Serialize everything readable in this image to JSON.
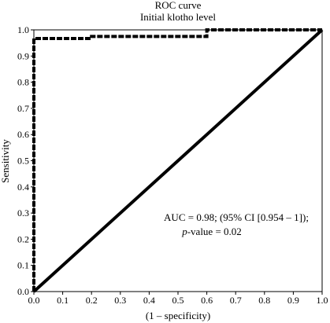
{
  "chart_data": {
    "type": "line",
    "title": "ROC curve",
    "subtitle": "Initial klotho level",
    "xlabel": "(1 – specificity)",
    "ylabel": "Sensitivity",
    "xlim": [
      0,
      1
    ],
    "ylim": [
      0,
      1
    ],
    "xticks": [
      "0.0",
      "0.1",
      "0.2",
      "0.3",
      "0.4",
      "0.5",
      "0.6",
      "0.7",
      "0.8",
      "0.9",
      "1.0"
    ],
    "yticks": [
      "0.0",
      "0.1",
      "0.2",
      "0.3",
      "0.4",
      "0.5",
      "0.6",
      "0.7",
      "0.8",
      "0.9",
      "1.0"
    ],
    "grid": false,
    "series": [
      {
        "style": "dashed",
        "x": [
          0.0,
          0.0,
          0.2,
          0.2,
          0.6,
          0.6,
          1.0
        ],
        "y": [
          0.0,
          0.967,
          0.967,
          0.975,
          0.975,
          1.0,
          1.0
        ]
      },
      {
        "style": "solid",
        "x": [
          0.0,
          1.0
        ],
        "y": [
          0.0,
          1.0
        ]
      }
    ],
    "annotation": {
      "line1": "AUC = 0.98; (95% CI [0.954 – 1]);",
      "line2_italic": "p",
      "line2_rest": "-value = 0.02"
    }
  }
}
